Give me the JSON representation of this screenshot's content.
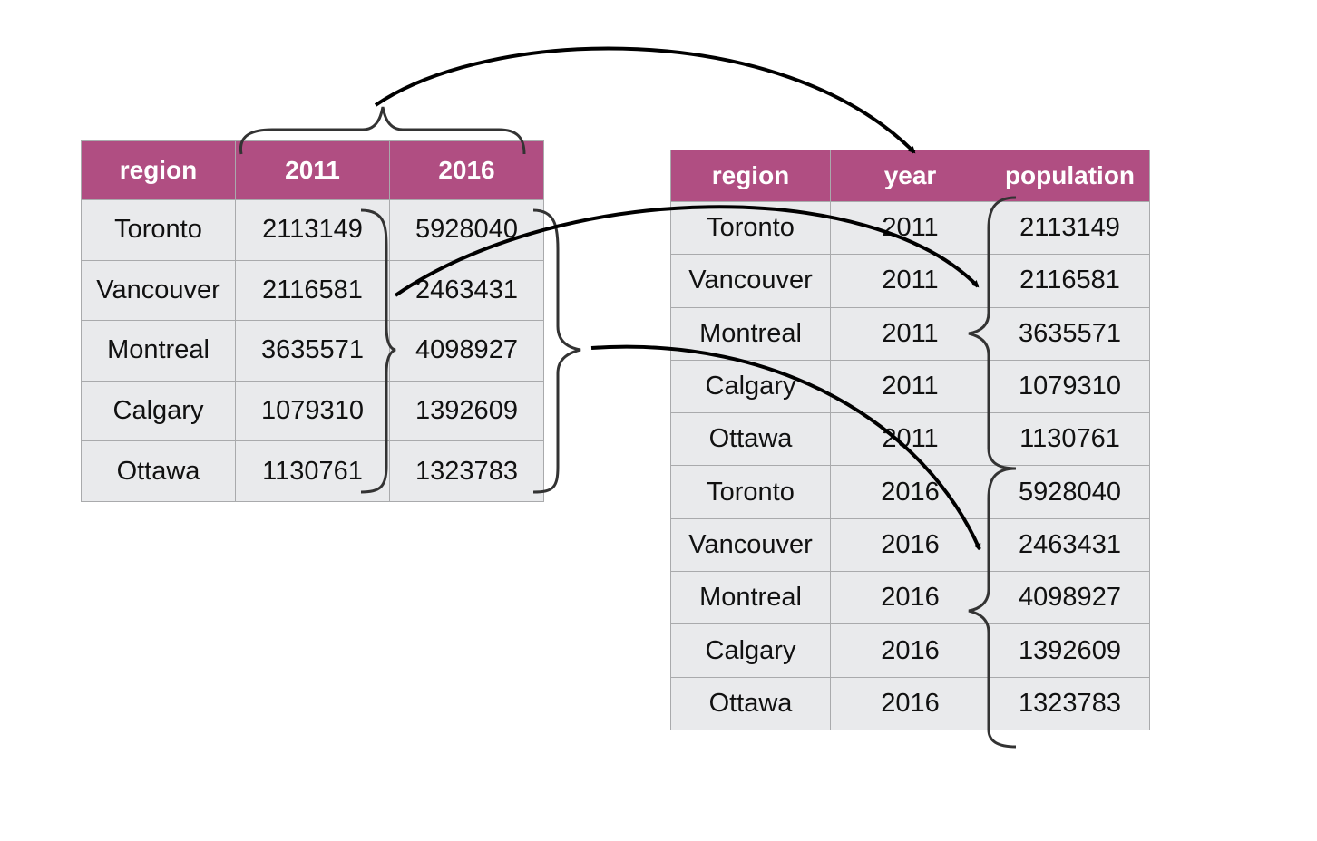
{
  "wide_table": {
    "headers": [
      "region",
      "2011",
      "2016"
    ],
    "rows": [
      [
        "Toronto",
        "2113149",
        "5928040"
      ],
      [
        "Vancouver",
        "2116581",
        "2463431"
      ],
      [
        "Montreal",
        "3635571",
        "4098927"
      ],
      [
        "Calgary",
        "1079310",
        "1392609"
      ],
      [
        "Ottawa",
        "1130761",
        "1323783"
      ]
    ]
  },
  "long_table": {
    "headers": [
      "region",
      "year",
      "population"
    ],
    "rows": [
      [
        "Toronto",
        "2011",
        "2113149"
      ],
      [
        "Vancouver",
        "2011",
        "2116581"
      ],
      [
        "Montreal",
        "2011",
        "3635571"
      ],
      [
        "Calgary",
        "2011",
        "1079310"
      ],
      [
        "Ottawa",
        "2011",
        "1130761"
      ],
      [
        "Toronto",
        "2016",
        "5928040"
      ],
      [
        "Vancouver",
        "2016",
        "2463431"
      ],
      [
        "Montreal",
        "2016",
        "4098927"
      ],
      [
        "Calgary",
        "2016",
        "1392609"
      ],
      [
        "Ottawa",
        "2016",
        "1323783"
      ]
    ]
  },
  "colors": {
    "header_bg": "#b04e82",
    "header_text": "#ffffff",
    "cell_bg": "#e9eaec",
    "grid_line": "#a9aaac",
    "arrow": "#000000",
    "brace": "#333333"
  }
}
